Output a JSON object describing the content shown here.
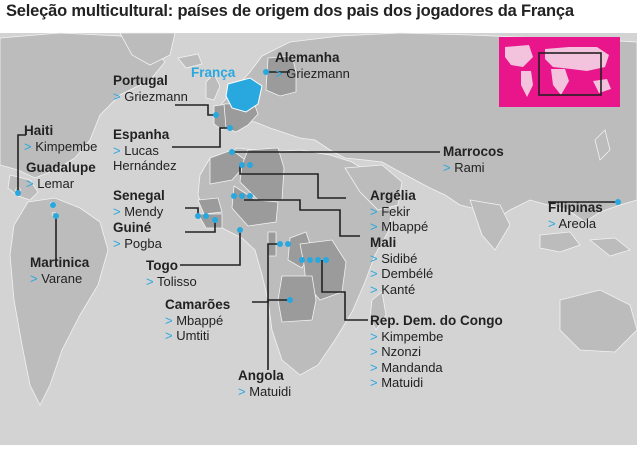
{
  "title": "Seleção multicultural: países de origem dos pais dos jogadores da França",
  "france": "França",
  "countries": [
    {
      "name": "Alemanha",
      "players": [
        "Griezmann"
      ]
    },
    {
      "name": "Portugal",
      "players": [
        "Griezmann"
      ]
    },
    {
      "name": "Espanha",
      "players": [
        "Lucas Hernández"
      ]
    },
    {
      "name": "Haiti",
      "players": [
        "Kimpembe"
      ]
    },
    {
      "name": "Guadalupe",
      "players": [
        "Lemar"
      ]
    },
    {
      "name": "Martinica",
      "players": [
        "Varane"
      ]
    },
    {
      "name": "Senegal",
      "players": [
        "Mendy"
      ]
    },
    {
      "name": "Guiné",
      "players": [
        "Pogba"
      ]
    },
    {
      "name": "Togo",
      "players": [
        "Tolisso"
      ]
    },
    {
      "name": "Camarões",
      "players": [
        "Mbappé",
        "Umtiti"
      ]
    },
    {
      "name": "Angola",
      "players": [
        "Matuidi"
      ]
    },
    {
      "name": "Marrocos",
      "players": [
        "Rami"
      ]
    },
    {
      "name": "Argélia",
      "players": [
        "Fekir",
        "Mbappé"
      ]
    },
    {
      "name": "Mali",
      "players": [
        "Sidibé",
        "Dembélé",
        "Kanté"
      ]
    },
    {
      "name": "Rep. Dem. do Congo",
      "players": [
        "Kimpembe",
        "Nzonzi",
        "Mandanda",
        "Matuidi"
      ]
    },
    {
      "name": "Filipinas",
      "players": [
        "Areola"
      ]
    }
  ],
  "colors": {
    "ocean": "#d3d3d3",
    "land": "#bcbcbc",
    "highlight": "#9b9b9b",
    "france": "#29a8e0",
    "inset": "#e8168a",
    "dot": "#29a8e0"
  }
}
